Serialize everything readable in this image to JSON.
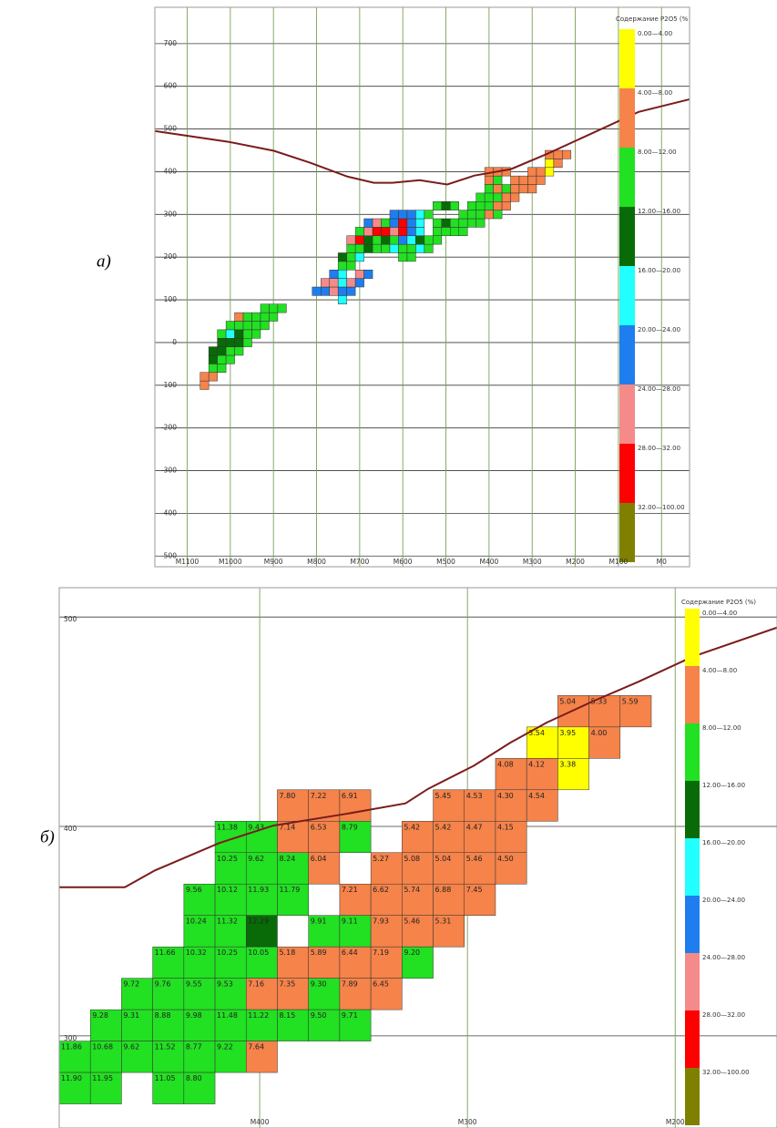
{
  "chart_data": [
    {
      "type": "heatmap",
      "panel_label": "а)",
      "xlim": [
        1175,
        -65
      ],
      "ylim": [
        -525,
        785
      ],
      "xticks": [
        {
          "value": 1100,
          "label": "M1100"
        },
        {
          "value": 1000,
          "label": "M1000"
        },
        {
          "value": 900,
          "label": "M900"
        },
        {
          "value": 800,
          "label": "M800"
        },
        {
          "value": 700,
          "label": "M700"
        },
        {
          "value": 600,
          "label": "M600"
        },
        {
          "value": 500,
          "label": "M500"
        },
        {
          "value": 400,
          "label": "M400"
        },
        {
          "value": 300,
          "label": "M300"
        },
        {
          "value": 200,
          "label": "M200"
        },
        {
          "value": 100,
          "label": "M100"
        },
        {
          "value": 0,
          "label": "M0"
        }
      ],
      "yticks": [
        700,
        600,
        500,
        400,
        300,
        200,
        100,
        0,
        -100,
        -200,
        -300,
        -400,
        -500
      ],
      "grid": true,
      "legend": {
        "title": "Содержание P2O5 (%",
        "bins": [
          0,
          4,
          8,
          12,
          16,
          20,
          24,
          28,
          32,
          100
        ],
        "labels": [
          "0.00—4.00",
          "4.00—8.00",
          "8.00—12.00",
          "12.00—16.00",
          "16.00—20.00",
          "20.00—24.00",
          "24.00—28.00",
          "28.00—32.00",
          "32.00—100.00"
        ],
        "colors": [
          "#ffff00",
          "#f5834a",
          "#22e022",
          "#086b08",
          "#22ffff",
          "#1e7ef0",
          "#f58a8a",
          "#ff0000",
          "#808000"
        ]
      },
      "rows": [
        {
          "y": -100,
          "x": [
            1060
          ],
          "values": [
            6
          ]
        },
        {
          "y": -80,
          "x": [
            1060,
            1040
          ],
          "values": [
            6,
            6
          ]
        },
        {
          "y": -60,
          "x": [
            1040,
            1020
          ],
          "values": [
            10,
            10
          ]
        },
        {
          "y": -40,
          "x": [
            1040,
            1020,
            1000
          ],
          "values": [
            14,
            10,
            10
          ]
        },
        {
          "y": -20,
          "x": [
            1040,
            1020,
            1000,
            980
          ],
          "values": [
            14,
            14,
            10,
            10
          ]
        },
        {
          "y": 0,
          "x": [
            1020,
            1000,
            980,
            960
          ],
          "values": [
            14,
            14,
            14,
            10
          ]
        },
        {
          "y": 20,
          "x": [
            1020,
            1000,
            980,
            960,
            940
          ],
          "values": [
            10,
            18,
            14,
            10,
            10
          ]
        },
        {
          "y": 40,
          "x": [
            1000,
            980,
            960,
            940,
            920
          ],
          "values": [
            10,
            10,
            10,
            10,
            10
          ]
        },
        {
          "y": 60,
          "x": [
            980,
            960,
            940,
            920,
            900
          ],
          "values": [
            6,
            10,
            10,
            10,
            10
          ]
        },
        {
          "y": 80,
          "x": [
            920,
            900,
            880
          ],
          "values": [
            10,
            10,
            10
          ]
        },
        {
          "y": 100,
          "x": [
            740
          ],
          "values": [
            18
          ]
        },
        {
          "y": 120,
          "x": [
            800,
            780,
            760,
            740,
            720
          ],
          "values": [
            22,
            22,
            26,
            22,
            22
          ]
        },
        {
          "y": 140,
          "x": [
            780,
            760,
            740,
            720,
            700
          ],
          "values": [
            26,
            26,
            18,
            26,
            22
          ]
        },
        {
          "y": 160,
          "x": [
            760,
            740,
            700,
            680
          ],
          "values": [
            22,
            18,
            26,
            22
          ]
        },
        {
          "y": 180,
          "x": [
            740,
            720
          ],
          "values": [
            10,
            10
          ]
        },
        {
          "y": 200,
          "x": [
            740,
            720,
            700,
            600,
            580
          ],
          "values": [
            14,
            10,
            18,
            10,
            10
          ]
        },
        {
          "y": 220,
          "x": [
            720,
            700,
            680,
            660,
            640,
            620,
            600,
            580,
            560,
            540
          ],
          "values": [
            10,
            10,
            14,
            10,
            10,
            18,
            10,
            10,
            18,
            10
          ]
        },
        {
          "y": 240,
          "x": [
            720,
            700,
            680,
            660,
            640,
            620,
            600,
            580,
            560,
            540,
            520
          ],
          "values": [
            26,
            30,
            14,
            10,
            14,
            10,
            22,
            18,
            14,
            10,
            10
          ]
        },
        {
          "y": 260,
          "x": [
            700,
            680,
            660,
            640,
            620,
            600,
            580,
            560,
            520,
            500,
            480,
            460
          ],
          "values": [
            10,
            26,
            30,
            30,
            26,
            30,
            22,
            18,
            10,
            10,
            10,
            10
          ]
        },
        {
          "y": 280,
          "x": [
            680,
            660,
            640,
            620,
            600,
            580,
            560,
            520,
            500,
            480,
            460,
            440,
            420
          ],
          "values": [
            22,
            26,
            10,
            22,
            30,
            22,
            18,
            10,
            14,
            10,
            10,
            10,
            10
          ]
        },
        {
          "y": 300,
          "x": [
            620,
            600,
            580,
            560,
            540,
            460,
            440,
            420,
            400,
            380
          ],
          "values": [
            22,
            22,
            22,
            18,
            10,
            10,
            10,
            10,
            6,
            10
          ]
        },
        {
          "y": 320,
          "x": [
            520,
            500,
            480,
            440,
            420,
            400,
            380,
            360
          ],
          "values": [
            10,
            14,
            10,
            10,
            10,
            10,
            6,
            6
          ]
        },
        {
          "y": 340,
          "x": [
            420,
            400,
            380,
            360,
            340
          ],
          "values": [
            10,
            10,
            10,
            6,
            6
          ]
        },
        {
          "y": 360,
          "x": [
            400,
            380,
            360,
            340,
            320,
            300
          ],
          "values": [
            10,
            6,
            10,
            6,
            6,
            6
          ]
        },
        {
          "y": 380,
          "x": [
            400,
            380,
            340,
            320,
            300,
            280
          ],
          "values": [
            6,
            10,
            6,
            6,
            6,
            6
          ]
        },
        {
          "y": 400,
          "x": [
            400,
            380,
            360,
            300,
            280,
            260
          ],
          "values": [
            6,
            6,
            6,
            6,
            6,
            2
          ]
        },
        {
          "y": 420,
          "x": [
            260,
            240
          ],
          "values": [
            2,
            6
          ]
        },
        {
          "y": 440,
          "x": [
            260,
            240,
            220
          ],
          "values": [
            6,
            6,
            6
          ]
        }
      ],
      "terrain": {
        "color": "#7a1c1c",
        "x": [
          1174,
          1005,
          899,
          815,
          730,
          667,
          624,
          561,
          497,
          434,
          349,
          265,
          159,
          53,
          -67
        ],
        "y": [
          495,
          470,
          449,
          421,
          389,
          374,
          374,
          380,
          370,
          391,
          406,
          442,
          491,
          540,
          570
        ]
      }
    },
    {
      "type": "heatmap",
      "panel_label": "б)",
      "xlim": [
        496.5,
        151
      ],
      "ylim": [
        256,
        514
      ],
      "xticks": [
        {
          "value": 400,
          "label": "M400"
        },
        {
          "value": 300,
          "label": "M300"
        },
        {
          "value": 200,
          "label": "M200"
        }
      ],
      "yticks": [
        500,
        400,
        300
      ],
      "grid": true,
      "legend": {
        "title": "Содержание P2O5 (%)",
        "bins": [
          0,
          4,
          8,
          12,
          16,
          20,
          24,
          28,
          32,
          100
        ],
        "labels": [
          "0.00—4.00",
          "4.00—8.00",
          "8.00—12.00",
          "12.00—16.00",
          "16.00—20.00",
          "20.00—24.00",
          "24.00—28.00",
          "28.00—32.00",
          "32.00—100.00"
        ],
        "colors": [
          "#ffff00",
          "#f5834a",
          "#22e022",
          "#086b08",
          "#22ffff",
          "#1e7ef0",
          "#f58a8a",
          "#ff0000",
          "#808000"
        ]
      },
      "rows": [
        {
          "y": 455,
          "x": [
            249,
            234,
            219
          ],
          "values": [
            5.04,
            5.33,
            5.59
          ],
          "value_labels": [
            "5.04",
            "5.33",
            "5.59"
          ]
        },
        {
          "y": 440,
          "x": [
            264,
            249,
            234
          ],
          "values": [
            3.54,
            3.95,
            4.0
          ],
          "value_labels": [
            "3.54",
            "3.95",
            "4.00"
          ]
        },
        {
          "y": 425,
          "x": [
            279,
            264,
            249
          ],
          "values": [
            4.08,
            4.12,
            3.38
          ],
          "value_labels": [
            "4.08",
            "4.12",
            "3.38"
          ]
        },
        {
          "y": 410,
          "x": [
            384,
            369,
            354,
            309,
            294,
            279,
            264
          ],
          "values": [
            7.8,
            7.22,
            6.91,
            5.45,
            4.53,
            4.3,
            4.54
          ],
          "value_labels": [
            "7.80",
            "7.22",
            "6.91",
            "5.45",
            "4.53",
            "4.30",
            "4.54"
          ]
        },
        {
          "y": 395,
          "x": [
            414,
            399,
            384,
            369,
            354,
            324,
            309,
            294,
            279
          ],
          "values": [
            11.38,
            9.43,
            7.14,
            6.53,
            8.79,
            5.42,
            5.42,
            4.47,
            4.15
          ],
          "value_labels": [
            "11.38",
            "9.43",
            "7.14",
            "6.53",
            "8.79",
            "5.42",
            "5.42",
            "4.47",
            "4.15"
          ]
        },
        {
          "y": 380,
          "x": [
            414,
            399,
            384,
            369,
            339,
            324,
            309,
            294,
            279
          ],
          "values": [
            10.25,
            9.62,
            8.24,
            6.04,
            5.27,
            5.08,
            5.04,
            5.46,
            4.5
          ],
          "value_labels": [
            "10.25",
            "9.62",
            "8.24",
            "6.04",
            "5.27",
            "5.08",
            "5.04",
            "5.46",
            "4.50"
          ]
        },
        {
          "y": 365,
          "x": [
            429,
            414,
            399,
            384,
            354,
            339,
            324,
            309,
            294
          ],
          "values": [
            9.56,
            10.12,
            11.93,
            11.79,
            7.21,
            6.62,
            5.74,
            6.88,
            7.45
          ],
          "value_labels": [
            "9.56",
            "10.12",
            "11.93",
            "11.79",
            "7.21",
            "6.62",
            "5.74",
            "6.88",
            "7.45"
          ]
        },
        {
          "y": 350,
          "x": [
            429,
            414,
            399,
            369,
            354,
            339,
            324,
            309
          ],
          "values": [
            10.24,
            11.32,
            12.29,
            9.91,
            9.11,
            7.93,
            5.46,
            5.31
          ],
          "value_labels": [
            "10.24",
            "11.32",
            "12.29",
            "9.91",
            "9.11",
            "7.93",
            "5.46",
            "5.31"
          ]
        },
        {
          "y": 335,
          "x": [
            444,
            429,
            414,
            399,
            384,
            369,
            354,
            339,
            324
          ],
          "values": [
            11.66,
            10.32,
            10.25,
            10.05,
            5.18,
            5.89,
            6.44,
            7.19,
            9.2
          ],
          "value_labels": [
            "11.66",
            "10.32",
            "10.25",
            "10.05",
            "5.18",
            "5.89",
            "6.44",
            "7.19",
            "9.20"
          ]
        },
        {
          "y": 320,
          "x": [
            459,
            444,
            429,
            414,
            399,
            384,
            369,
            354,
            339
          ],
          "values": [
            9.72,
            9.76,
            9.55,
            9.53,
            7.16,
            7.35,
            9.3,
            7.89,
            6.45
          ],
          "value_labels": [
            "9.72",
            "9.76",
            "9.55",
            "9.53",
            "7.16",
            "7.35",
            "9.30",
            "7.89",
            "6.45"
          ]
        },
        {
          "y": 305,
          "x": [
            474,
            459,
            444,
            429,
            414,
            399,
            384,
            369,
            354
          ],
          "values": [
            9.28,
            9.31,
            8.88,
            9.98,
            11.48,
            11.22,
            8.15,
            9.5,
            9.71
          ],
          "value_labels": [
            "9.28",
            "9.31",
            "8.88",
            "9.98",
            "11.48",
            "11.22",
            "8.15",
            "9.50",
            "9.71"
          ]
        },
        {
          "y": 290,
          "x": [
            489,
            474,
            459,
            444,
            429,
            414,
            399
          ],
          "values": [
            11.86,
            10.68,
            9.62,
            11.52,
            8.77,
            9.22,
            7.64
          ],
          "value_labels": [
            "11.86",
            "10.68",
            "9.62",
            "11.52",
            "8.77",
            "9.22",
            "7.64"
          ]
        },
        {
          "y": 275,
          "x": [
            489,
            474,
            444,
            429
          ],
          "values": [
            11.9,
            11.95,
            11.05,
            8.8
          ],
          "value_labels": [
            "11.90",
            "11.95",
            "11.05",
            "8.80"
          ]
        }
      ],
      "terrain": {
        "color": "#7a1c1c",
        "x": [
          496.5,
          464.9,
          450.4,
          419.7,
          393.4,
          358.3,
          329.8,
          318.9,
          296.9,
          279.4,
          261.8,
          239.9,
          217.9,
          191.7,
          150.9
        ],
        "y": [
          371,
          371,
          379,
          392,
          400.4,
          406,
          411,
          418,
          429,
          440,
          449.6,
          459.6,
          469,
          481,
          495
        ]
      }
    }
  ]
}
